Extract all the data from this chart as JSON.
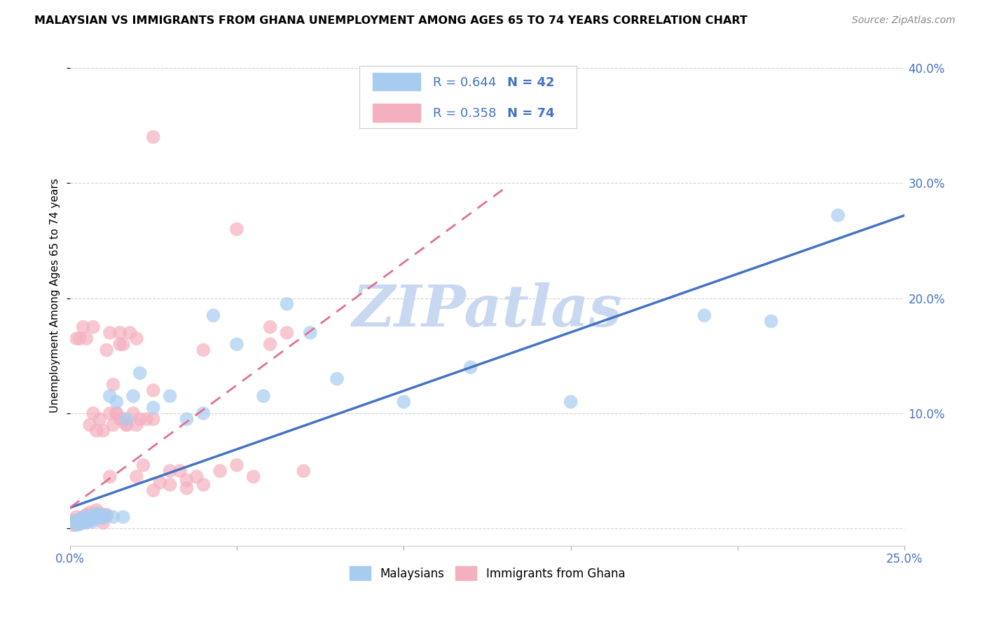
{
  "title": "MALAYSIAN VS IMMIGRANTS FROM GHANA UNEMPLOYMENT AMONG AGES 65 TO 74 YEARS CORRELATION CHART",
  "source": "Source: ZipAtlas.com",
  "ylabel": "Unemployment Among Ages 65 to 74 years",
  "xlim": [
    0.0,
    0.25
  ],
  "ylim": [
    -0.015,
    0.42
  ],
  "blue_R": 0.644,
  "blue_N": 42,
  "pink_R": 0.358,
  "pink_N": 74,
  "blue_color": "#A8CCF0",
  "pink_color": "#F5B0C0",
  "blue_line_color": "#4472C4",
  "pink_line_color": "#E07090",
  "watermark": "ZIPatlas",
  "watermark_color": "#C8D8F0",
  "legend_label_blue": "Malaysians",
  "legend_label_pink": "Immigrants from Ghana",
  "blue_line_x0": 0.0,
  "blue_line_y0": 0.018,
  "blue_line_x1": 0.25,
  "blue_line_y1": 0.272,
  "pink_line_x0": 0.0,
  "pink_line_y0": 0.018,
  "pink_line_x1": 0.13,
  "pink_line_y1": 0.295,
  "blue_x": [
    0.001,
    0.002,
    0.002,
    0.003,
    0.003,
    0.004,
    0.004,
    0.005,
    0.005,
    0.006,
    0.006,
    0.007,
    0.007,
    0.008,
    0.008,
    0.009,
    0.01,
    0.01,
    0.011,
    0.012,
    0.013,
    0.014,
    0.016,
    0.017,
    0.019,
    0.021,
    0.025,
    0.03,
    0.035,
    0.04,
    0.043,
    0.05,
    0.058,
    0.065,
    0.072,
    0.08,
    0.1,
    0.12,
    0.15,
    0.19,
    0.21,
    0.23
  ],
  "blue_y": [
    0.005,
    0.003,
    0.007,
    0.004,
    0.008,
    0.006,
    0.01,
    0.005,
    0.009,
    0.007,
    0.011,
    0.006,
    0.009,
    0.011,
    0.013,
    0.01,
    0.009,
    0.012,
    0.011,
    0.115,
    0.01,
    0.11,
    0.01,
    0.095,
    0.115,
    0.135,
    0.105,
    0.115,
    0.095,
    0.1,
    0.185,
    0.16,
    0.115,
    0.195,
    0.17,
    0.13,
    0.11,
    0.14,
    0.11,
    0.185,
    0.18,
    0.272
  ],
  "pink_x": [
    0.0,
    0.001,
    0.001,
    0.002,
    0.002,
    0.003,
    0.003,
    0.003,
    0.004,
    0.004,
    0.005,
    0.005,
    0.006,
    0.006,
    0.006,
    0.007,
    0.007,
    0.008,
    0.008,
    0.009,
    0.009,
    0.01,
    0.01,
    0.011,
    0.011,
    0.012,
    0.012,
    0.013,
    0.013,
    0.014,
    0.015,
    0.015,
    0.016,
    0.016,
    0.017,
    0.018,
    0.019,
    0.02,
    0.021,
    0.022,
    0.023,
    0.025,
    0.027,
    0.03,
    0.033,
    0.035,
    0.038,
    0.04,
    0.045,
    0.05,
    0.055,
    0.06,
    0.065,
    0.07,
    0.002,
    0.004,
    0.005,
    0.007,
    0.008,
    0.01,
    0.012,
    0.014,
    0.017,
    0.02,
    0.025,
    0.03,
    0.035,
    0.04,
    0.015,
    0.02,
    0.025,
    0.05,
    0.06,
    0.025
  ],
  "pink_y": [
    0.005,
    0.003,
    0.007,
    0.006,
    0.01,
    0.004,
    0.008,
    0.165,
    0.007,
    0.009,
    0.006,
    0.012,
    0.009,
    0.014,
    0.09,
    0.008,
    0.1,
    0.011,
    0.016,
    0.013,
    0.095,
    0.01,
    0.085,
    0.012,
    0.155,
    0.1,
    0.17,
    0.09,
    0.125,
    0.1,
    0.095,
    0.16,
    0.095,
    0.16,
    0.09,
    0.17,
    0.1,
    0.165,
    0.095,
    0.055,
    0.095,
    0.095,
    0.04,
    0.05,
    0.05,
    0.035,
    0.045,
    0.155,
    0.05,
    0.055,
    0.045,
    0.16,
    0.17,
    0.05,
    0.165,
    0.175,
    0.165,
    0.175,
    0.085,
    0.005,
    0.045,
    0.1,
    0.09,
    0.045,
    0.033,
    0.038,
    0.042,
    0.038,
    0.17,
    0.09,
    0.12,
    0.26,
    0.175,
    0.34
  ]
}
